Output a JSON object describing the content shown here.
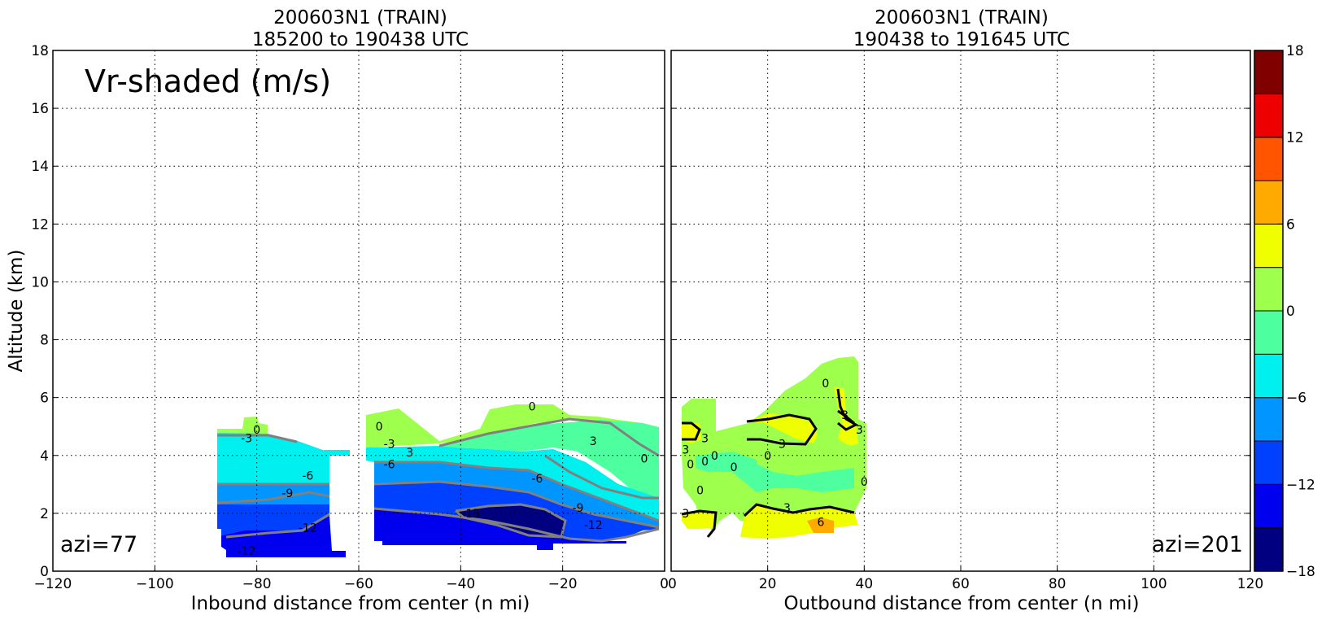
{
  "chart_data": [
    {
      "type": "heatmap",
      "title": "200603N1 (TRAIN)",
      "subtitle": "185200 to 190438 UTC",
      "xlabel": "Inbound distance from center (n mi)",
      "ylabel": "Altitude (km)",
      "xlim": [
        -120,
        0
      ],
      "ylim": [
        0,
        18
      ],
      "xticks": [
        "−120",
        "−100",
        "−80",
        "−60",
        "−40",
        "−20",
        "0"
      ],
      "yticks": [
        "0",
        "2",
        "4",
        "6",
        "8",
        "10",
        "12",
        "14",
        "16",
        "18"
      ],
      "grid": true,
      "annotation": "Vr-shaded (m/s)",
      "azi_label": "azi=77",
      "contour_labels": [
        {
          "text": "0",
          "x": -80,
          "y": 4.9
        },
        {
          "text": "-3",
          "x": -82,
          "y": 4.6
        },
        {
          "text": "-6",
          "x": -70,
          "y": 3.3
        },
        {
          "text": "-9",
          "x": -74,
          "y": 2.7
        },
        {
          "text": "-12",
          "x": -70,
          "y": 1.5
        },
        {
          "text": "-12",
          "x": -82,
          "y": 0.7
        },
        {
          "text": "0",
          "x": -56,
          "y": 5.0
        },
        {
          "text": "-3",
          "x": -54,
          "y": 4.4
        },
        {
          "text": "3",
          "x": -50,
          "y": 4.1
        },
        {
          "text": "-6",
          "x": -54,
          "y": 3.7
        },
        {
          "text": "0",
          "x": -26,
          "y": 5.7
        },
        {
          "text": "3",
          "x": -14,
          "y": 4.5
        },
        {
          "text": "0",
          "x": -4,
          "y": 3.9
        },
        {
          "text": "-6",
          "x": -25,
          "y": 3.2
        },
        {
          "text": "-9",
          "x": -17,
          "y": 2.2
        },
        {
          "text": "-12",
          "x": -14,
          "y": 1.6
        },
        {
          "text": "-15",
          "x": -38,
          "y": 2.0
        }
      ]
    },
    {
      "type": "heatmap",
      "title": "200603N1 (TRAIN)",
      "subtitle": "190438 to 191645 UTC",
      "xlabel": "Outbound distance from center (n mi)",
      "xlim": [
        0,
        120
      ],
      "ylim": [
        0,
        18
      ],
      "xticks": [
        "0",
        "20",
        "40",
        "60",
        "80",
        "100",
        "120"
      ],
      "grid": true,
      "azi_label": "azi=201",
      "contour_labels": [
        {
          "text": "0",
          "x": 32,
          "y": 6.5
        },
        {
          "text": "3",
          "x": 36,
          "y": 5.4
        },
        {
          "text": "3",
          "x": 39,
          "y": 4.9
        },
        {
          "text": "3",
          "x": 7,
          "y": 4.6
        },
        {
          "text": "3",
          "x": 3,
          "y": 4.2
        },
        {
          "text": "0",
          "x": 9,
          "y": 4.0
        },
        {
          "text": "0",
          "x": 7,
          "y": 3.8
        },
        {
          "text": "0",
          "x": 4,
          "y": 3.7
        },
        {
          "text": "3",
          "x": 23,
          "y": 4.4
        },
        {
          "text": "0",
          "x": 13,
          "y": 3.6
        },
        {
          "text": "0",
          "x": 20,
          "y": 4.0
        },
        {
          "text": "0",
          "x": 40,
          "y": 3.1
        },
        {
          "text": "0",
          "x": 6,
          "y": 2.8
        },
        {
          "text": "3",
          "x": 3,
          "y": 2.0
        },
        {
          "text": "3",
          "x": 24,
          "y": 2.2
        },
        {
          "text": "6",
          "x": 31,
          "y": 1.7
        }
      ]
    }
  ],
  "colorbar": {
    "labels": [
      "18",
      "12",
      "6",
      "0",
      "−6",
      "−12",
      "−18"
    ],
    "colors": [
      "#000080",
      "#0000ee",
      "#0040ff",
      "#0095ff",
      "#00efef",
      "#4dff9f",
      "#9fff4d",
      "#efff00",
      "#ffaa00",
      "#ff5500",
      "#ee0000",
      "#800000"
    ],
    "range": [
      -18,
      18
    ]
  }
}
